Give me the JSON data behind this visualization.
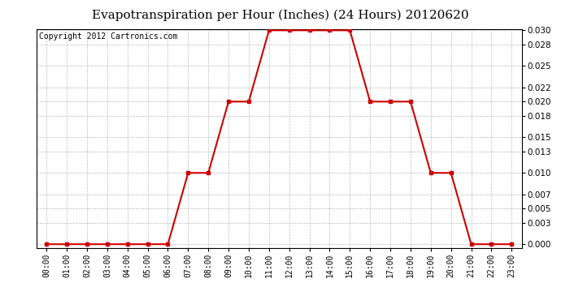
{
  "title": "Evapotranspiration per Hour (Inches) (24 Hours) 20120620",
  "copyright": "Copyright 2012 Cartronics.com",
  "hours": [
    "00:00",
    "01:00",
    "02:00",
    "03:00",
    "04:00",
    "05:00",
    "06:00",
    "07:00",
    "08:00",
    "09:00",
    "10:00",
    "11:00",
    "12:00",
    "13:00",
    "14:00",
    "15:00",
    "16:00",
    "17:00",
    "18:00",
    "19:00",
    "20:00",
    "21:00",
    "22:00",
    "23:00"
  ],
  "values": [
    0.0,
    0.0,
    0.0,
    0.0,
    0.0,
    0.0,
    0.0,
    0.01,
    0.01,
    0.02,
    0.02,
    0.03,
    0.03,
    0.03,
    0.03,
    0.03,
    0.02,
    0.02,
    0.02,
    0.01,
    0.01,
    0.0,
    0.0,
    0.0
  ],
  "line_color": "#cc0000",
  "marker": "s",
  "marker_size": 3,
  "bg_color": "#ffffff",
  "plot_bg_color": "#ffffff",
  "grid_color": "#bbbbbb",
  "ylim": [
    0.0,
    0.03
  ],
  "yticks": [
    0.0,
    0.003,
    0.005,
    0.007,
    0.01,
    0.013,
    0.015,
    0.018,
    0.02,
    0.022,
    0.025,
    0.028,
    0.03
  ],
  "title_fontsize": 11,
  "copyright_fontsize": 7
}
